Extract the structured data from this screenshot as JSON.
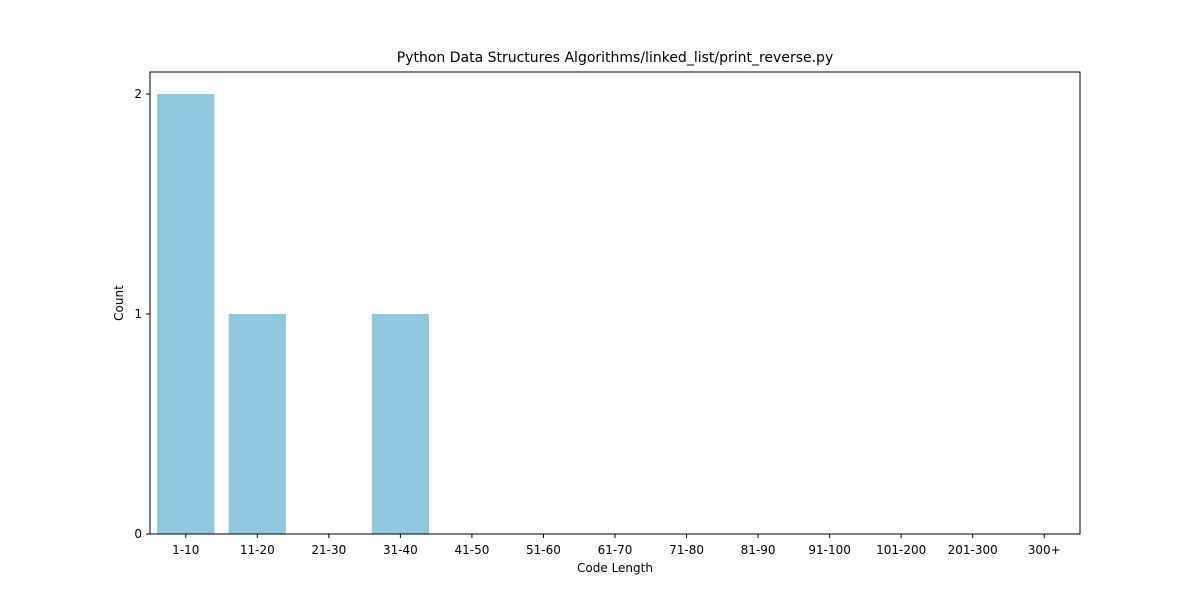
{
  "chart_data": {
    "type": "bar",
    "title": "Python Data Structures Algorithms/linked_list/print_reverse.py",
    "xlabel": "Code Length",
    "ylabel": "Count",
    "categories": [
      "1-10",
      "11-20",
      "21-30",
      "31-40",
      "41-50",
      "51-60",
      "61-70",
      "71-80",
      "81-90",
      "91-100",
      "101-200",
      "201-300",
      "300+"
    ],
    "values": [
      2,
      1,
      0,
      1,
      0,
      0,
      0,
      0,
      0,
      0,
      0,
      0,
      0
    ],
    "ylim": [
      0,
      2.1
    ],
    "yticks": [
      0,
      1,
      2
    ],
    "bar_color": "#92c8df",
    "grid": false,
    "legend": "none"
  }
}
